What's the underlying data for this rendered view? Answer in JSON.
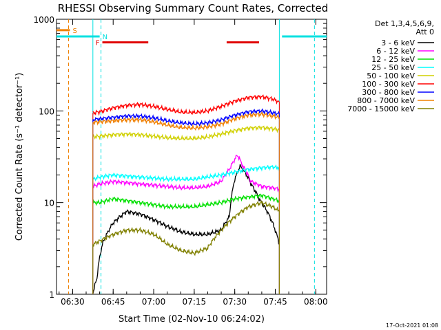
{
  "chart_data": {
    "type": "line",
    "title": "RHESSI Observing Summary Count Rates, Corrected",
    "xlabel": "Start Time (02-Nov-10 06:24:02)",
    "ylabel": "Corrected Count Rate (s⁻¹ detector⁻¹)",
    "ylog": true,
    "xlim": [
      "06:24:02",
      "08:04:00"
    ],
    "ylim": [
      1,
      1000
    ],
    "xticks": [
      "06:30",
      "06:45",
      "07:00",
      "07:15",
      "07:30",
      "07:45",
      "08:00"
    ],
    "yticks": [
      "1",
      "10",
      "100",
      "1000"
    ],
    "legend_position": "top-right",
    "legend_header": [
      "Det 1,3,4,5,6,9,",
      "Att 0"
    ],
    "footer": "17-Oct-2021 01:08",
    "flags": [
      {
        "label": "S",
        "color": "#f08000",
        "segments": [
          [
            "06:24:02",
            "06:29:00"
          ]
        ],
        "level": 760
      },
      {
        "label": "N",
        "color": "#00e0e0",
        "segments": [
          [
            "06:24:02",
            "06:40:00"
          ],
          [
            "07:47:30",
            "08:04:00"
          ]
        ],
        "level": 650
      },
      {
        "label": "F",
        "color": "#e00000",
        "segments": [
          [
            "06:41:00",
            "06:58:00"
          ],
          [
            "07:27:00",
            "07:39:00"
          ]
        ],
        "level": 560
      }
    ],
    "markers": [
      {
        "time": "06:28:30",
        "color": "#f08000",
        "style": "dashed"
      },
      {
        "time": "06:40:30",
        "color": "#00e0e0",
        "style": "dashed"
      },
      {
        "time": "07:59:30",
        "color": "#00e0e0",
        "style": "dashed"
      },
      {
        "time": "06:37:30",
        "color": "#00e0e0",
        "style": "solid"
      },
      {
        "time": "07:46:30",
        "color": "#00e0e0",
        "style": "solid"
      }
    ],
    "series": [
      {
        "name": "3 - 6 keV",
        "color": "#000000",
        "points": [
          [
            "06:37:30",
            1.0
          ],
          [
            "06:39:00",
            1.5
          ],
          [
            "06:41:00",
            3.5
          ],
          [
            "06:45:00",
            6.0
          ],
          [
            "06:50:00",
            8.0
          ],
          [
            "06:55:00",
            7.5
          ],
          [
            "07:00:00",
            6.5
          ],
          [
            "07:05:00",
            5.5
          ],
          [
            "07:10:00",
            4.8
          ],
          [
            "07:15:00",
            4.5
          ],
          [
            "07:20:00",
            4.5
          ],
          [
            "07:25:00",
            5.0
          ],
          [
            "07:28:00",
            7.0
          ],
          [
            "07:30:00",
            18.0
          ],
          [
            "07:32:00",
            25.0
          ],
          [
            "07:34:00",
            21.0
          ],
          [
            "07:36:00",
            16.0
          ],
          [
            "07:39:00",
            11.0
          ],
          [
            "07:42:00",
            8.0
          ],
          [
            "07:45:00",
            5.0
          ],
          [
            "07:46:30",
            3.5
          ]
        ]
      },
      {
        "name": "6 - 12 keV",
        "color": "#ff00ff",
        "points": [
          [
            "06:37:30",
            15.0
          ],
          [
            "06:40:00",
            16.0
          ],
          [
            "06:45:00",
            17.0
          ],
          [
            "06:50:00",
            16.5
          ],
          [
            "06:55:00",
            16.0
          ],
          [
            "07:00:00",
            15.5
          ],
          [
            "07:05:00",
            15.0
          ],
          [
            "07:10:00",
            14.5
          ],
          [
            "07:15:00",
            14.5
          ],
          [
            "07:20:00",
            15.0
          ],
          [
            "07:25:00",
            17.0
          ],
          [
            "07:28:00",
            23.0
          ],
          [
            "07:31:00",
            33.0
          ],
          [
            "07:33:00",
            25.0
          ],
          [
            "07:36:00",
            17.0
          ],
          [
            "07:40:00",
            15.0
          ],
          [
            "07:44:00",
            14.5
          ],
          [
            "07:46:30",
            14.0
          ]
        ]
      },
      {
        "name": "12 - 25 keV",
        "color": "#00e000",
        "points": [
          [
            "06:37:30",
            10.0
          ],
          [
            "06:40:00",
            10.0
          ],
          [
            "06:45:00",
            11.0
          ],
          [
            "06:50:00",
            10.5
          ],
          [
            "06:55:00",
            10.0
          ],
          [
            "07:00:00",
            9.5
          ],
          [
            "07:05:00",
            9.0
          ],
          [
            "07:10:00",
            9.0
          ],
          [
            "07:15:00",
            9.0
          ],
          [
            "07:20:00",
            9.5
          ],
          [
            "07:25:00",
            10.0
          ],
          [
            "07:30:00",
            11.0
          ],
          [
            "07:35:00",
            11.5
          ],
          [
            "07:40:00",
            12.0
          ],
          [
            "07:44:00",
            11.0
          ],
          [
            "07:46:30",
            10.5
          ]
        ]
      },
      {
        "name": "25 - 50 keV",
        "color": "#00ffff",
        "points": [
          [
            "06:37:30",
            18.0
          ],
          [
            "06:40:00",
            19.0
          ],
          [
            "06:45:00",
            20.0
          ],
          [
            "06:50:00",
            19.5
          ],
          [
            "06:55:00",
            19.0
          ],
          [
            "07:00:00",
            18.5
          ],
          [
            "07:05:00",
            18.0
          ],
          [
            "07:10:00",
            18.0
          ],
          [
            "07:15:00",
            18.0
          ],
          [
            "07:20:00",
            19.0
          ],
          [
            "07:25:00",
            20.0
          ],
          [
            "07:30:00",
            21.5
          ],
          [
            "07:35:00",
            23.0
          ],
          [
            "07:40:00",
            24.0
          ],
          [
            "07:44:00",
            24.5
          ],
          [
            "07:46:30",
            24.0
          ]
        ]
      },
      {
        "name": "50 - 100 keV",
        "color": "#d0d000",
        "points": [
          [
            "06:37:30",
            52.0
          ],
          [
            "06:40:00",
            53.0
          ],
          [
            "06:45:00",
            55.0
          ],
          [
            "06:50:00",
            56.0
          ],
          [
            "06:55:00",
            55.0
          ],
          [
            "07:00:00",
            53.0
          ],
          [
            "07:05:00",
            51.0
          ],
          [
            "07:10:00",
            50.0
          ],
          [
            "07:15:00",
            50.0
          ],
          [
            "07:20:00",
            52.0
          ],
          [
            "07:25:00",
            56.0
          ],
          [
            "07:30:00",
            61.0
          ],
          [
            "07:35:00",
            65.0
          ],
          [
            "07:40:00",
            66.0
          ],
          [
            "07:44:00",
            64.0
          ],
          [
            "07:46:30",
            62.0
          ]
        ]
      },
      {
        "name": "100 - 300 keV",
        "color": "#ff0000",
        "points": [
          [
            "06:37:30",
            95.0
          ],
          [
            "06:40:00",
            98.0
          ],
          [
            "06:45:00",
            108.0
          ],
          [
            "06:50:00",
            115.0
          ],
          [
            "06:55:00",
            118.0
          ],
          [
            "07:00:00",
            112.0
          ],
          [
            "07:05:00",
            104.0
          ],
          [
            "07:10:00",
            97.0
          ],
          [
            "07:15:00",
            96.0
          ],
          [
            "07:20:00",
            100.0
          ],
          [
            "07:25:00",
            112.0
          ],
          [
            "07:30:00",
            128.0
          ],
          [
            "07:35:00",
            140.0
          ],
          [
            "07:40:00",
            143.0
          ],
          [
            "07:44:00",
            135.0
          ],
          [
            "07:46:30",
            125.0
          ]
        ]
      },
      {
        "name": "300 - 800 keV",
        "color": "#0000ff",
        "points": [
          [
            "06:37:30",
            80.0
          ],
          [
            "06:40:00",
            82.0
          ],
          [
            "06:45:00",
            85.0
          ],
          [
            "06:50:00",
            88.0
          ],
          [
            "06:55:00",
            88.0
          ],
          [
            "07:00:00",
            84.0
          ],
          [
            "07:05:00",
            78.0
          ],
          [
            "07:10:00",
            74.0
          ],
          [
            "07:15:00",
            72.0
          ],
          [
            "07:20:00",
            74.0
          ],
          [
            "07:25:00",
            80.0
          ],
          [
            "07:30:00",
            90.0
          ],
          [
            "07:35:00",
            98.0
          ],
          [
            "07:40:00",
            100.0
          ],
          [
            "07:44:00",
            96.0
          ],
          [
            "07:46:30",
            92.0
          ]
        ]
      },
      {
        "name": "800 - 7000 keV",
        "color": "#f08000",
        "points": [
          [
            "06:37:30",
            75.0
          ],
          [
            "06:40:00",
            76.0
          ],
          [
            "06:45:00",
            78.0
          ],
          [
            "06:50:00",
            80.0
          ],
          [
            "06:55:00",
            80.0
          ],
          [
            "07:00:00",
            76.0
          ],
          [
            "07:05:00",
            70.0
          ],
          [
            "07:10:00",
            66.0
          ],
          [
            "07:15:00",
            65.0
          ],
          [
            "07:20:00",
            67.0
          ],
          [
            "07:25:00",
            72.0
          ],
          [
            "07:30:00",
            82.0
          ],
          [
            "07:35:00",
            90.0
          ],
          [
            "07:40:00",
            92.0
          ],
          [
            "07:44:00",
            88.0
          ],
          [
            "07:46:30",
            85.0
          ]
        ]
      },
      {
        "name": "7000 - 15000 keV",
        "color": "#808000",
        "points": [
          [
            "06:37:30",
            3.5
          ],
          [
            "06:40:00",
            3.8
          ],
          [
            "06:45:00",
            4.5
          ],
          [
            "06:50:00",
            5.0
          ],
          [
            "06:55:00",
            5.0
          ],
          [
            "07:00:00",
            4.5
          ],
          [
            "07:05:00",
            3.5
          ],
          [
            "07:10:00",
            3.0
          ],
          [
            "07:15:00",
            2.8
          ],
          [
            "07:20:00",
            3.2
          ],
          [
            "07:25:00",
            5.0
          ],
          [
            "07:30:00",
            7.0
          ],
          [
            "07:35:00",
            9.0
          ],
          [
            "07:40:00",
            10.0
          ],
          [
            "07:44:00",
            9.0
          ],
          [
            "07:46:30",
            8.0
          ]
        ]
      }
    ]
  }
}
